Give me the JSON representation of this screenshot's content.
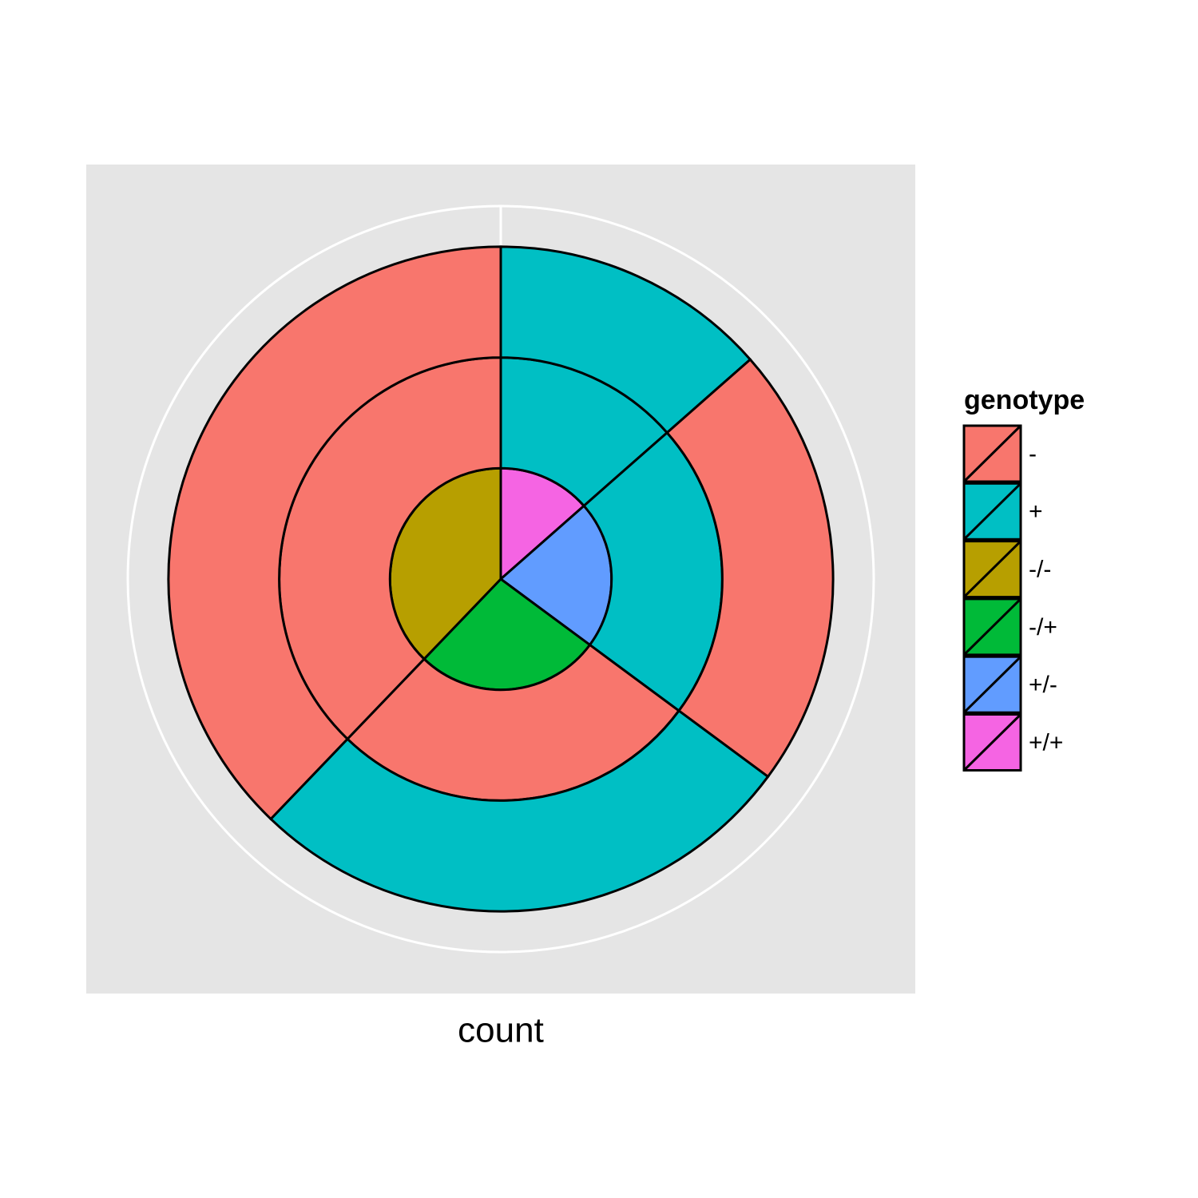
{
  "chart_data": {
    "type": "polar-stacked",
    "x_label": "count",
    "legend_title": "genotype",
    "legend": [
      {
        "name": "-",
        "color": "#F8766D"
      },
      {
        "name": "+",
        "color": "#00BFC4"
      },
      {
        "name": "-/-",
        "color": "#B79F00"
      },
      {
        "name": "-/+",
        "color": "#00BA38"
      },
      {
        "name": "+/-",
        "color": "#619CFF"
      },
      {
        "name": "+/+",
        "color": "#F564E3"
      }
    ],
    "rings": [
      {
        "values": [
          5,
          8,
          10,
          14
        ],
        "colors": [
          "#F564E3",
          "#619CFF",
          "#00BA38",
          "#B79F00"
        ]
      },
      {
        "values": [
          5,
          8,
          10,
          14
        ],
        "colors": [
          "#00BFC4",
          "#00BFC4",
          "#F8766D",
          "#F8766D"
        ]
      },
      {
        "values": [
          5,
          8,
          10,
          14
        ],
        "colors": [
          "#00BFC4",
          "#F8766D",
          "#00BFC4",
          "#F8766D"
        ]
      }
    ]
  }
}
